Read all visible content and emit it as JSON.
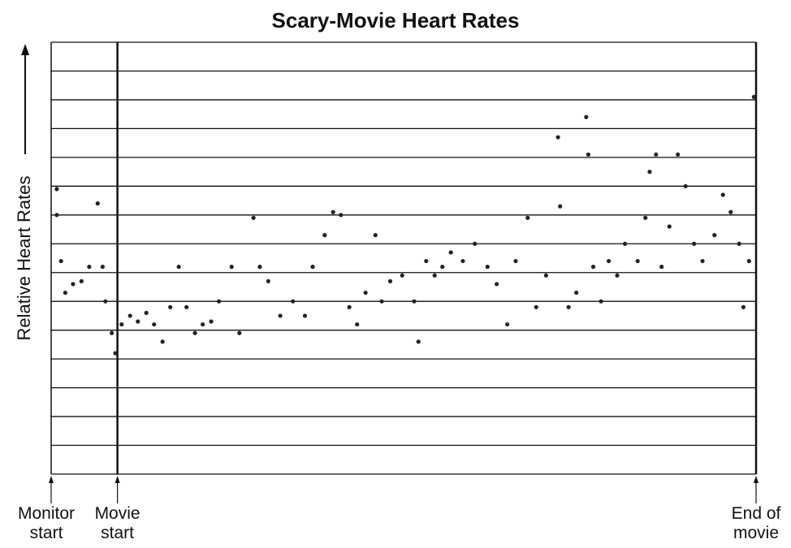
{
  "chart_data": {
    "type": "scatter",
    "title": "Scary-Movie Heart Rates",
    "y_label": "Relative Heart Rates",
    "color": "#222222",
    "grid": true,
    "xlim": [
      0,
      100
    ],
    "ylim": [
      0,
      15
    ],
    "xticks": [
      {
        "value": 0,
        "label": "Monitor start"
      },
      {
        "value": 9.4,
        "label": "Movie start"
      },
      {
        "value": 100,
        "label": "End of movie"
      }
    ],
    "yticks": [
      0,
      1,
      2,
      3,
      4,
      5,
      6,
      7,
      8,
      9,
      10,
      11,
      12,
      13,
      14,
      15
    ],
    "x": [
      0.8,
      0.8,
      1.4,
      2.0,
      3.1,
      4.3,
      5.4,
      6.6,
      7.3,
      7.7,
      8.6,
      9.1,
      10.0,
      11.2,
      12.3,
      13.5,
      14.6,
      15.8,
      16.9,
      18.1,
      19.2,
      20.4,
      21.5,
      22.7,
      23.8,
      25.6,
      26.7,
      28.7,
      29.6,
      30.8,
      32.5,
      34.3,
      36.0,
      37.1,
      38.8,
      40.0,
      41.1,
      42.3,
      43.4,
      44.6,
      46.0,
      46.9,
      48.1,
      49.8,
      51.5,
      52.1,
      53.2,
      54.4,
      55.5,
      56.7,
      58.4,
      60.1,
      61.9,
      63.2,
      64.7,
      65.9,
      67.6,
      68.8,
      70.2,
      71.9,
      72.2,
      73.4,
      74.5,
      75.9,
      76.2,
      76.9,
      78.0,
      79.1,
      80.3,
      81.4,
      83.2,
      84.3,
      84.9,
      85.8,
      86.6,
      87.7,
      88.9,
      90.0,
      91.2,
      92.4,
      94.1,
      95.3,
      96.4,
      97.6,
      98.2,
      99.0,
      99.7
    ],
    "y": [
      9.9,
      9.0,
      7.4,
      6.3,
      6.6,
      6.7,
      7.2,
      9.4,
      7.2,
      6.0,
      4.9,
      4.2,
      5.2,
      5.5,
      5.3,
      5.6,
      5.2,
      4.6,
      5.8,
      7.2,
      5.8,
      4.9,
      5.2,
      5.3,
      6.0,
      7.2,
      4.9,
      8.9,
      7.2,
      6.7,
      5.5,
      6.0,
      5.5,
      7.2,
      8.3,
      9.1,
      9.0,
      5.8,
      5.2,
      6.3,
      8.3,
      6.0,
      6.7,
      6.9,
      6.0,
      4.6,
      7.4,
      6.9,
      7.2,
      7.7,
      7.4,
      8.0,
      7.2,
      6.6,
      5.2,
      7.4,
      8.9,
      5.8,
      6.9,
      11.7,
      9.3,
      5.8,
      6.3,
      12.4,
      11.1,
      7.2,
      6.0,
      7.4,
      6.9,
      8.0,
      7.4,
      8.9,
      10.5,
      11.1,
      7.2,
      8.6,
      11.1,
      10.0,
      8.0,
      7.4,
      8.3,
      9.7,
      9.1,
      8.0,
      5.8,
      7.4,
      13.1
    ]
  }
}
